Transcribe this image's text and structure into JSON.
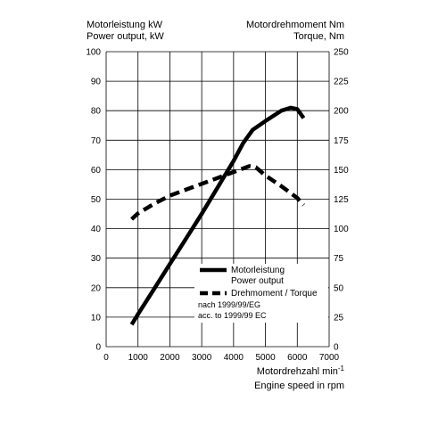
{
  "header": {
    "left_line1": "Motorleistung kW",
    "left_line2": "Power output, kW",
    "right_line1": "Motordrehmoment Nm",
    "right_line2": "Torque, Nm"
  },
  "xaxis_label": {
    "line1": "Motordrehzahl min",
    "line1_sup": "-1",
    "line2": "Engine speed in rpm"
  },
  "legend": {
    "power_line1": "Motorleistung",
    "power_line2": "Power output",
    "torque": "Drehmoment / Torque",
    "note_line1": "nach 1999/99/EG",
    "note_line2": "acc. to 1999/99 EC"
  },
  "colors": {
    "line": "#000000",
    "grid": "#000000",
    "background": "#ffffff"
  },
  "chart_data": {
    "type": "line",
    "xlim": [
      0,
      7000
    ],
    "x_ticks": [
      0,
      1000,
      2000,
      3000,
      4000,
      5000,
      6000,
      7000
    ],
    "ylim_left": [
      0,
      100
    ],
    "y_ticks_left": [
      0,
      10,
      20,
      30,
      40,
      50,
      60,
      70,
      80,
      90,
      100
    ],
    "ylim_right": [
      0,
      250
    ],
    "y_ticks_right": [
      0,
      25,
      50,
      75,
      100,
      125,
      150,
      175,
      200,
      225,
      250
    ],
    "grid": true,
    "legend_position": "lower-right",
    "series": [
      {
        "name": "Motorleistung / Power output",
        "axis": "left",
        "style": "solid",
        "x": [
          800,
          1000,
          1500,
          2000,
          2500,
          3000,
          3500,
          4000,
          4300,
          4600,
          5000,
          5500,
          5800,
          6000,
          6200
        ],
        "values": [
          7.5,
          11,
          19.5,
          28,
          36.5,
          45,
          54,
          63,
          69,
          73.5,
          76.5,
          80,
          81,
          80.5,
          77.5
        ]
      },
      {
        "name": "Drehmoment / Torque",
        "axis": "right",
        "style": "dashed",
        "x": [
          800,
          1000,
          1500,
          2000,
          2500,
          3000,
          3500,
          4000,
          4500,
          4700,
          5000,
          5500,
          6000,
          6200
        ],
        "values": [
          108,
          113,
          121,
          128,
          133,
          138,
          143,
          148,
          153,
          152,
          145,
          136,
          126,
          120
        ]
      }
    ]
  }
}
